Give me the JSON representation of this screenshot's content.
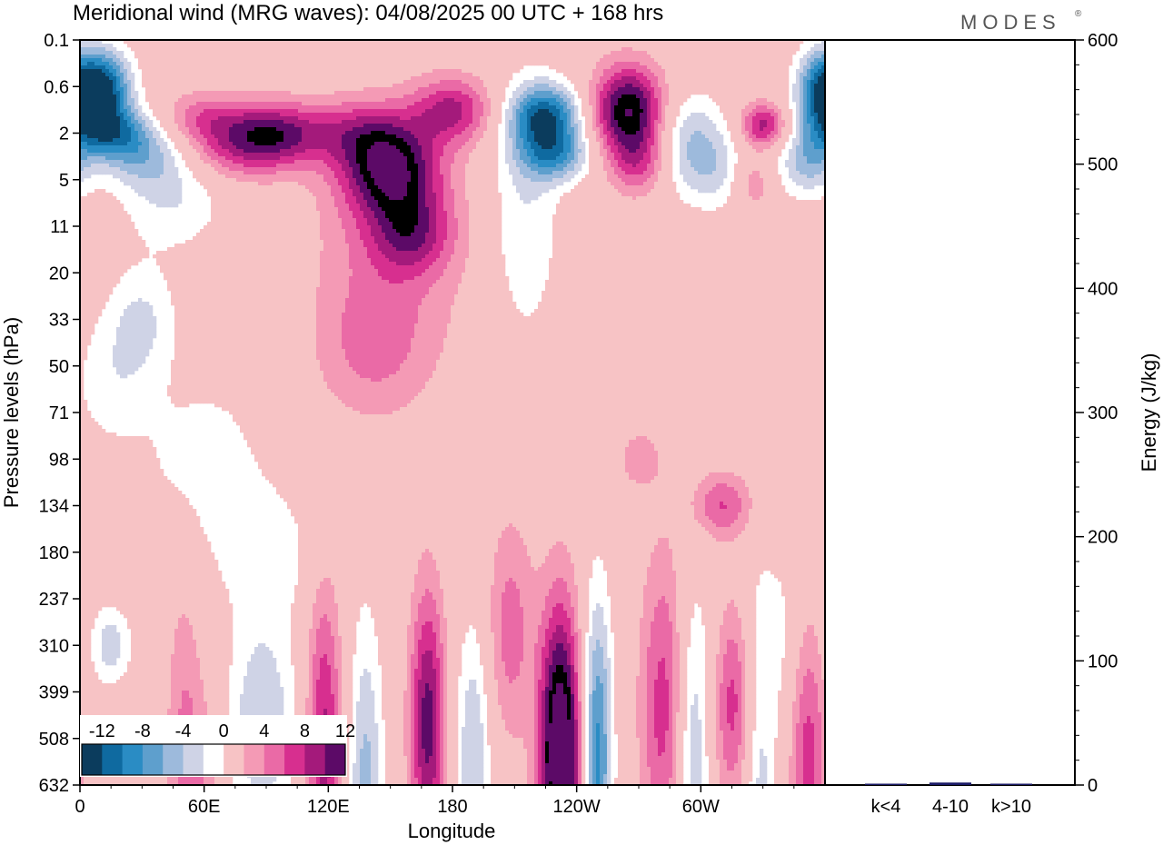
{
  "chart_data": {
    "type": "heatmap",
    "title": "Meridional wind (MRG waves):  04/08/2025  00 UTC  + 168 hrs",
    "brand": "MODES",
    "brand_mark": "®",
    "xlabel": "Longitude",
    "ylabel": "Pressure levels (hPa)",
    "x_ticks": [
      "0",
      "60E",
      "120E",
      "180",
      "120W",
      "60W"
    ],
    "y_ticks": [
      "0.1",
      "0.6",
      "2",
      "5",
      "11",
      "20",
      "33",
      "50",
      "71",
      "98",
      "134",
      "180",
      "237",
      "310",
      "399",
      "508",
      "632"
    ],
    "colorbar": {
      "levels": [
        -14,
        -12,
        -10,
        -8,
        -6,
        -4,
        -2,
        2,
        4,
        6,
        8,
        10,
        12,
        14
      ],
      "labels": [
        "-12",
        "-8",
        "-4",
        "0",
        "4",
        "8",
        "12"
      ],
      "colors": [
        "#0b3c5d",
        "#0f6aa0",
        "#2a8cc4",
        "#5e9fcd",
        "#9dbadc",
        "#cfd3e6",
        "#ffffff",
        "#f7c3c5",
        "#f49ab5",
        "#ea6aa6",
        "#d72f8f",
        "#a41a7b",
        "#5c0a67"
      ]
    },
    "features": [
      {
        "lon": 10,
        "lev": 3.2,
        "val": -16,
        "dlon": 10,
        "dlev": 1.8
      },
      {
        "lon": 15,
        "lev": 6.0,
        "val": -9,
        "dlon": 14,
        "dlev": 1.2
      },
      {
        "lon": 30,
        "lev": 7.5,
        "val": -5,
        "dlon": 14,
        "dlev": 1.5
      },
      {
        "lon": 45,
        "lev": 10.0,
        "val": -4,
        "dlon": 18,
        "dlev": 2.5
      },
      {
        "lon": 60,
        "lev": 5.0,
        "val": 5,
        "dlon": 15,
        "dlev": 1.2
      },
      {
        "lon": 75,
        "lev": 7.0,
        "val": 6,
        "dlon": 18,
        "dlev": 1.5
      },
      {
        "lon": 95,
        "lev": 6.0,
        "val": 9,
        "dlon": 16,
        "dlev": 1.4
      },
      {
        "lon": 135,
        "lev": 6.0,
        "val": 6,
        "dlon": 18,
        "dlev": 1.5
      },
      {
        "lon": 150,
        "lev": 8.5,
        "val": 12,
        "dlon": 16,
        "dlev": 2.0
      },
      {
        "lon": 160,
        "lev": 12.5,
        "val": 7,
        "dlon": 14,
        "dlev": 1.8
      },
      {
        "lon": 140,
        "lev": 20.0,
        "val": 3,
        "dlon": 18,
        "dlev": 3.0
      },
      {
        "lon": 150,
        "lev": 14.0,
        "val": 4,
        "dlon": 26,
        "dlev": 6.0
      },
      {
        "lon": 180,
        "lev": 4.5,
        "val": 8,
        "dlon": 14,
        "dlev": 1.5
      },
      {
        "lon": 225,
        "lev": 5.0,
        "val": -13,
        "dlon": 12,
        "dlev": 1.5
      },
      {
        "lon": 230,
        "lev": 7.5,
        "val": -8,
        "dlon": 12,
        "dlev": 1.2
      },
      {
        "lon": 215,
        "lev": 11.0,
        "val": -4,
        "dlon": 12,
        "dlev": 6.0
      },
      {
        "lon": 265,
        "lev": 4.5,
        "val": 14,
        "dlon": 12,
        "dlev": 2.0
      },
      {
        "lon": 270,
        "lev": 8.0,
        "val": 6,
        "dlon": 10,
        "dlev": 1.5
      },
      {
        "lon": 295,
        "lev": 6.0,
        "val": -5,
        "dlon": 12,
        "dlev": 2.0
      },
      {
        "lon": 310,
        "lev": 8.5,
        "val": -5,
        "dlon": 18,
        "dlev": 1.8
      },
      {
        "lon": 330,
        "lev": 5.5,
        "val": 9,
        "dlon": 8,
        "dlev": 1.0
      },
      {
        "lon": 325,
        "lev": 9.0,
        "val": 6,
        "dlon": 8,
        "dlev": 1.5
      },
      {
        "lon": 352,
        "lev": 8.0,
        "val": -6,
        "dlon": 10,
        "dlev": 1.5
      },
      {
        "lon": 356,
        "lev": 3.5,
        "val": -9,
        "dlon": 8,
        "dlev": 2.0
      },
      {
        "lon": 15,
        "lev": 22.0,
        "val": -3,
        "dlon": 14,
        "dlev": 3.0
      },
      {
        "lon": 30,
        "lev": 18.0,
        "val": -4,
        "dlon": 12,
        "dlev": 2.5
      },
      {
        "lon": 60,
        "lev": 27.0,
        "val": -3,
        "dlon": 22,
        "dlev": 4.0
      },
      {
        "lon": 90,
        "lev": 33.0,
        "val": -3,
        "dlon": 18,
        "dlev": 3.0
      },
      {
        "lon": 270,
        "lev": 27.0,
        "val": 3,
        "dlon": 8,
        "dlev": 1.5
      },
      {
        "lon": 310,
        "lev": 30.0,
        "val": 6,
        "dlon": 10,
        "dlev": 1.5
      },
      {
        "lon": 330,
        "lev": 38.0,
        "val": -3,
        "dlon": 18,
        "dlev": 4.0
      },
      {
        "lon": 15,
        "lev": 39.0,
        "val": -5,
        "dlon": 7,
        "dlev": 1.8
      },
      {
        "lon": 50,
        "lev": 46.0,
        "val": 4,
        "dlon": 6,
        "dlev": 8.0
      },
      {
        "lon": 60,
        "lev": 48.0,
        "val": 3,
        "dlon": 7,
        "dlev": 5.0
      },
      {
        "lon": 88,
        "lev": 44.0,
        "val": -6,
        "dlon": 12,
        "dlev": 5.0
      },
      {
        "lon": 118,
        "lev": 46.0,
        "val": 9,
        "dlon": 6,
        "dlev": 7.5
      },
      {
        "lon": 138,
        "lev": 49.0,
        "val": -7,
        "dlon": 6,
        "dlev": 8.0
      },
      {
        "lon": 168,
        "lev": 44.0,
        "val": 11,
        "dlon": 6,
        "dlev": 6.0
      },
      {
        "lon": 190,
        "lev": 46.0,
        "val": -6,
        "dlon": 6,
        "dlev": 6.0
      },
      {
        "lon": 208,
        "lev": 38.0,
        "val": 5,
        "dlon": 8,
        "dlev": 5.0
      },
      {
        "lon": 232,
        "lev": 46.0,
        "val": 18,
        "dlon": 7,
        "dlev": 6.5
      },
      {
        "lon": 250,
        "lev": 46.0,
        "val": -11,
        "dlon": 5,
        "dlev": 7.0
      },
      {
        "lon": 282,
        "lev": 43.0,
        "val": 7,
        "dlon": 8,
        "dlev": 7.0
      },
      {
        "lon": 296,
        "lev": 46.0,
        "val": -6,
        "dlon": 6,
        "dlev": 7.0
      },
      {
        "lon": 316,
        "lev": 42.0,
        "val": 8,
        "dlon": 7,
        "dlev": 5.0
      },
      {
        "lon": 328,
        "lev": 48.0,
        "val": -5,
        "dlon": 6,
        "dlev": 6.0
      },
      {
        "lon": 352,
        "lev": 46.0,
        "val": 7,
        "dlon": 6,
        "dlev": 7.0
      }
    ],
    "energy_axis": {
      "label": "Energy (J/kg)",
      "ylim": [
        0,
        600
      ],
      "ticks": [
        "0",
        "100",
        "200",
        "300",
        "400",
        "500",
        "600"
      ],
      "categories": [
        "k<4",
        "4-10",
        "k>10"
      ],
      "values": [
        0,
        2,
        0
      ],
      "bar_color": "#1a1a66"
    }
  }
}
